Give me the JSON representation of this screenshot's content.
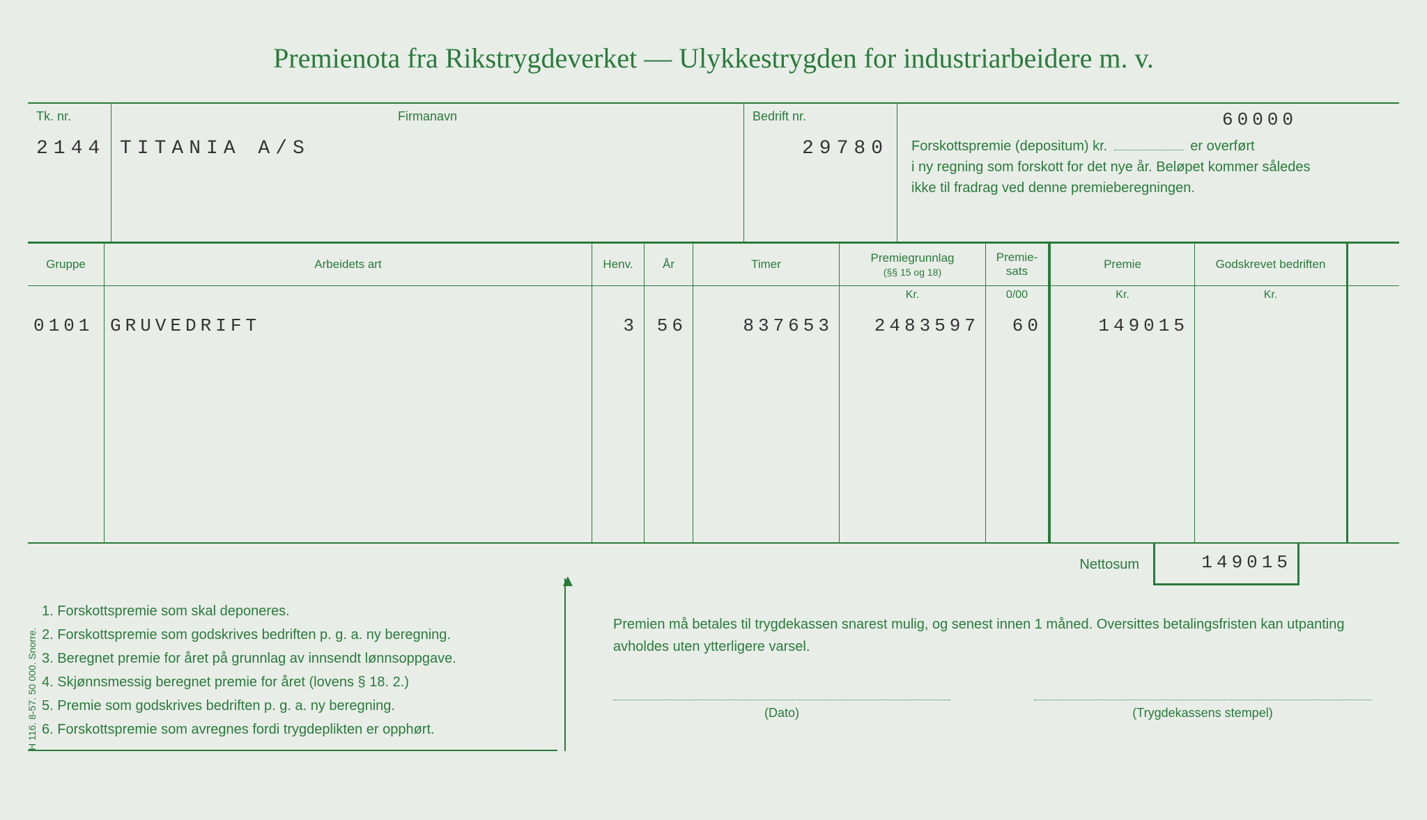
{
  "title": "Premienota fra Rikstrygdeverket — Ulykkestrygden for industriarbeidere m. v.",
  "header": {
    "tk_nr_label": "Tk. nr.",
    "tk_nr": "2144",
    "firmanavn_label": "Firmanavn",
    "firmanavn": "TITANIA A/S",
    "bedrift_nr_label": "Bedrift nr.",
    "bedrift_nr": "29780",
    "forskott_amount": "60000",
    "info_line1_pre": "Forskottspremie (depositum) kr. ",
    "info_line1_post": " er overført",
    "info_line2": "i ny regning som forskott for det nye år. Beløpet kommer således",
    "info_line3": "ikke til fradrag ved denne premieberegningen."
  },
  "columns": {
    "gruppe": "Gruppe",
    "arbeidets_art": "Arbeidets art",
    "henv": "Henv.",
    "ar": "År",
    "timer": "Timer",
    "premiegrunnlag": "Premiegrunnlag",
    "premiegrunnlag_sub": "(§§ 15 og 18)",
    "premiesats": "Premie-sats",
    "premie": "Premie",
    "godskrevet": "Godskrevet bedriften",
    "kr": "Kr.",
    "promille": "0/00"
  },
  "row": {
    "gruppe": "0101",
    "art": "GRUVEDRIFT",
    "henv": "3",
    "ar": "56",
    "timer": "837653",
    "grunnlag": "2483597",
    "sats": "60",
    "premie": "149015",
    "godskrevet": ""
  },
  "netto": {
    "label": "Nettosum",
    "value": "149015"
  },
  "footer_list": {
    "i1": "1. Forskottspremie som skal deponeres.",
    "i2": "2. Forskottspremie som godskrives bedriften p. g. a. ny beregning.",
    "i3": "3. Beregnet premie for året på grunnlag av innsendt lønnsoppgave.",
    "i4": "4. Skjønnsmessig beregnet premie for året (lovens § 18. 2.)",
    "i5": "5. Premie som godskrives bedriften p. g. a. ny beregning.",
    "i6": "6. Forskottspremie som avregnes fordi trygdeplikten er opphørt."
  },
  "footer_right": {
    "text": "Premien må betales til trygdekassen snarest mulig, og senest innen 1 måned. Oversittes betalingsfristen kan utpanting avholdes uten ytterligere varsel.",
    "dato": "(Dato)",
    "stempel": "(Trygdekassens stempel)"
  },
  "side_print": "H 116. 8-57. 50 000. Snorre."
}
